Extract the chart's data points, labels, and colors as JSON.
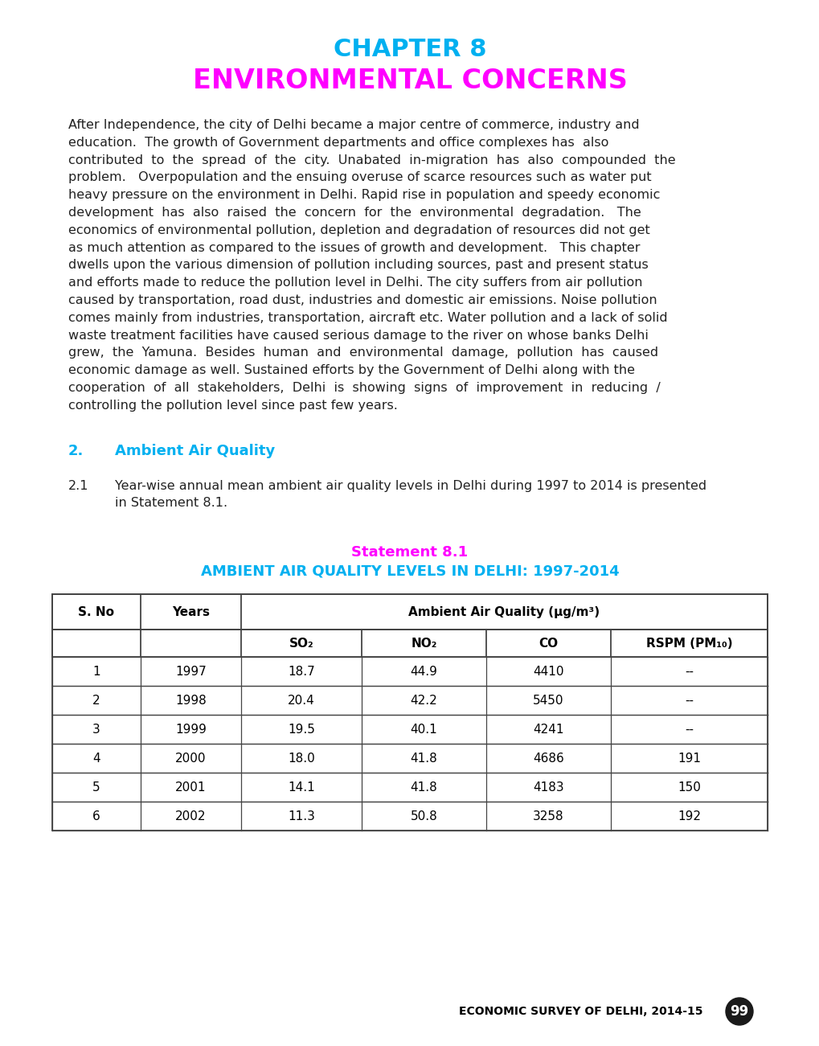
{
  "bg_color": "#ffffff",
  "chapter_title_line1": "CHAPTER 8",
  "chapter_title_line1_color": "#00b0f0",
  "chapter_title_line2": "ENVIRONMENTAL CONCERNS",
  "chapter_title_line2_color": "#ff00ff",
  "title_fontsize": 22,
  "body_lines": [
    "After Independence, the city of Delhi became a major centre of commerce, industry and",
    "education.  The growth of Government departments and office complexes has  also",
    "contributed  to  the  spread  of  the  city.  Unabated  in-migration  has  also  compounded  the",
    "problem.   Overpopulation and the ensuing overuse of scarce resources such as water put",
    "heavy pressure on the environment in Delhi. Rapid rise in population and speedy economic",
    "development  has  also  raised  the  concern  for  the  environmental  degradation.   The",
    "economics of environmental pollution, depletion and degradation of resources did not get",
    "as much attention as compared to the issues of growth and development.   This chapter",
    "dwells upon the various dimension of pollution including sources, past and present status",
    "and efforts made to reduce the pollution level in Delhi. The city suffers from air pollution",
    "caused by transportation, road dust, industries and domestic air emissions. Noise pollution",
    "comes mainly from industries, transportation, aircraft etc. Water pollution and a lack of solid",
    "waste treatment facilities have caused serious damage to the river on whose banks Delhi",
    "grew,  the  Yamuna.  Besides  human  and  environmental  damage,  pollution  has  caused",
    "economic damage as well. Sustained efforts by the Government of Delhi along with the",
    "cooperation  of  all  stakeholders,  Delhi  is  showing  signs  of  improvement  in  reducing  /",
    "controlling the pollution level since past few years."
  ],
  "body_fontsize": 11.5,
  "body_color": "#222222",
  "section_num": "2.",
  "section_title": "Ambient Air Quality",
  "section_color": "#00b0f0",
  "section_fontsize": 13,
  "subsection_num": "2.1",
  "subsection_line1": "Year-wise annual mean ambient air quality levels in Delhi during 1997 to 2014 is presented",
  "subsection_line2": "in Statement 8.1.",
  "statement_title_line1": "Statement 8.1",
  "statement_title_line1_color": "#ff00ff",
  "statement_title_line2": "AMBIENT AIR QUALITY LEVELS IN DELHI: 1997-2014",
  "statement_title_line2_color": "#00b0f0",
  "statement_fontsize": 13,
  "table_header1_col1": "S. No",
  "table_header1_col2": "Years",
  "table_header1_col3": "Ambient Air Quality (μg/m³)",
  "table_header2": [
    "",
    "",
    "SO₂",
    "NO₂",
    "CO",
    "RSPM (PM₁₀)"
  ],
  "table_data": [
    [
      "1",
      "1997",
      "18.7",
      "44.9",
      "4410",
      "--"
    ],
    [
      "2",
      "1998",
      "20.4",
      "42.2",
      "5450",
      "--"
    ],
    [
      "3",
      "1999",
      "19.5",
      "40.1",
      "4241",
      "--"
    ],
    [
      "4",
      "2000",
      "18.0",
      "41.8",
      "4686",
      "191"
    ],
    [
      "5",
      "2001",
      "14.1",
      "41.8",
      "4183",
      "150"
    ],
    [
      "6",
      "2002",
      "11.3",
      "50.8",
      "3258",
      "192"
    ]
  ],
  "footer_text": "ECONOMIC SURVEY OF DELHI, 2014-15",
  "footer_page": "99",
  "footer_fontsize": 10
}
